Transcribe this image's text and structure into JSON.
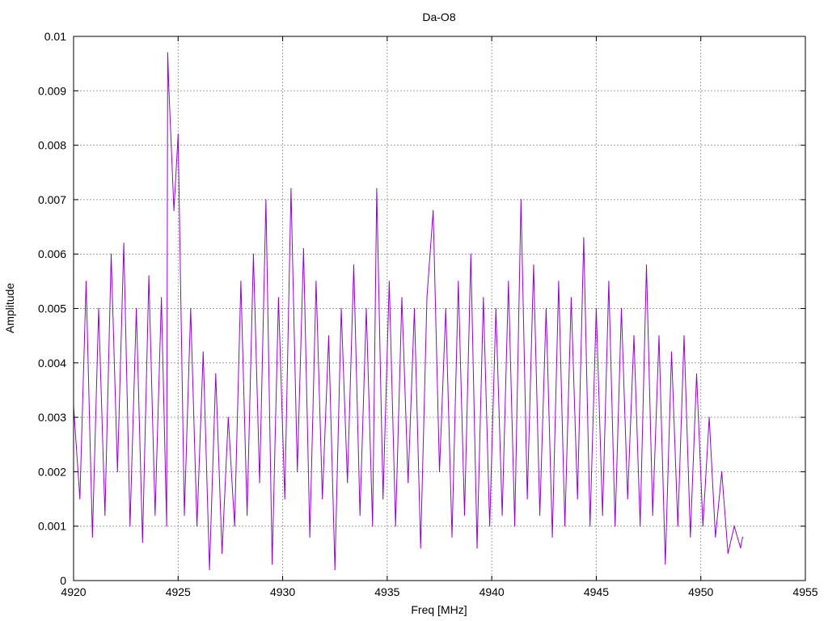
{
  "chart_data": {
    "type": "line",
    "title": "Da-O8",
    "xlabel": "Freq [MHz]",
    "ylabel": "Amplitude",
    "xlim": [
      4920,
      4955
    ],
    "ylim": [
      0,
      0.01
    ],
    "x_ticks": [
      "4920",
      "4925",
      "4930",
      "4935",
      "4940",
      "4945",
      "4950",
      "4955"
    ],
    "y_ticks": [
      "0",
      "0.001",
      "0.002",
      "0.003",
      "0.004",
      "0.005",
      "0.006",
      "0.007",
      "0.008",
      "0.009",
      "0.01"
    ],
    "grid": true,
    "line_color": "#9400d3",
    "series": [
      {
        "x": [
          4920.0,
          4920.3,
          4920.6,
          4920.9,
          4921.2,
          4921.5,
          4921.8,
          4922.1,
          4922.4,
          4922.7,
          4923.0,
          4923.3,
          4923.6,
          4923.9,
          4924.2,
          4924.45,
          4924.5,
          4924.55,
          4924.8,
          4925.0,
          4925.3,
          4925.6,
          4925.9,
          4926.2,
          4926.5,
          4926.8,
          4927.1,
          4927.4,
          4927.7,
          4928.0,
          4928.3,
          4928.6,
          4928.9,
          4929.2,
          4929.5,
          4929.8,
          4930.1,
          4930.4,
          4930.7,
          4931.0,
          4931.3,
          4931.6,
          4931.9,
          4932.2,
          4932.5,
          4932.8,
          4933.1,
          4933.4,
          4933.7,
          4934.0,
          4934.3,
          4934.5,
          4934.8,
          4935.1,
          4935.4,
          4935.7,
          4936.0,
          4936.3,
          4936.6,
          4936.9,
          4937.2,
          4937.5,
          4937.8,
          4938.1,
          4938.4,
          4938.7,
          4939.0,
          4939.3,
          4939.6,
          4939.9,
          4940.2,
          4940.5,
          4940.8,
          4941.1,
          4941.4,
          4941.7,
          4942.0,
          4942.3,
          4942.6,
          4942.9,
          4943.2,
          4943.5,
          4943.8,
          4944.1,
          4944.4,
          4944.7,
          4945.0,
          4945.3,
          4945.6,
          4945.9,
          4946.2,
          4946.5,
          4946.8,
          4947.1,
          4947.4,
          4947.7,
          4948.0,
          4948.3,
          4948.6,
          4948.9,
          4949.2,
          4949.5,
          4949.8,
          4950.1,
          4950.4,
          4950.7,
          4951.0,
          4951.3,
          4951.6,
          4951.9,
          4952.0
        ],
        "y": [
          0.0032,
          0.0015,
          0.0055,
          0.0008,
          0.005,
          0.0012,
          0.006,
          0.002,
          0.0062,
          0.001,
          0.005,
          0.0007,
          0.0056,
          0.0012,
          0.0052,
          0.001,
          0.0097,
          0.0091,
          0.0068,
          0.0082,
          0.0012,
          0.005,
          0.001,
          0.0042,
          0.0002,
          0.0038,
          0.0005,
          0.003,
          0.001,
          0.0055,
          0.0012,
          0.006,
          0.0018,
          0.007,
          0.0003,
          0.0052,
          0.0015,
          0.0072,
          0.002,
          0.0061,
          0.0008,
          0.0055,
          0.0015,
          0.0045,
          0.0002,
          0.005,
          0.0018,
          0.0058,
          0.0012,
          0.005,
          0.001,
          0.0072,
          0.0015,
          0.0055,
          0.001,
          0.0052,
          0.0018,
          0.005,
          0.0006,
          0.0052,
          0.0068,
          0.002,
          0.005,
          0.0008,
          0.0055,
          0.0012,
          0.006,
          0.0006,
          0.0052,
          0.001,
          0.005,
          0.0012,
          0.0055,
          0.001,
          0.007,
          0.0015,
          0.0058,
          0.0012,
          0.005,
          0.0008,
          0.0055,
          0.001,
          0.0052,
          0.0015,
          0.0063,
          0.001,
          0.005,
          0.0012,
          0.0055,
          0.001,
          0.005,
          0.0015,
          0.0045,
          0.001,
          0.0058,
          0.0012,
          0.0045,
          0.0003,
          0.0042,
          0.001,
          0.0045,
          0.0008,
          0.0038,
          0.001,
          0.003,
          0.0008,
          0.002,
          0.0005,
          0.001,
          0.0006,
          0.0008
        ]
      }
    ]
  }
}
